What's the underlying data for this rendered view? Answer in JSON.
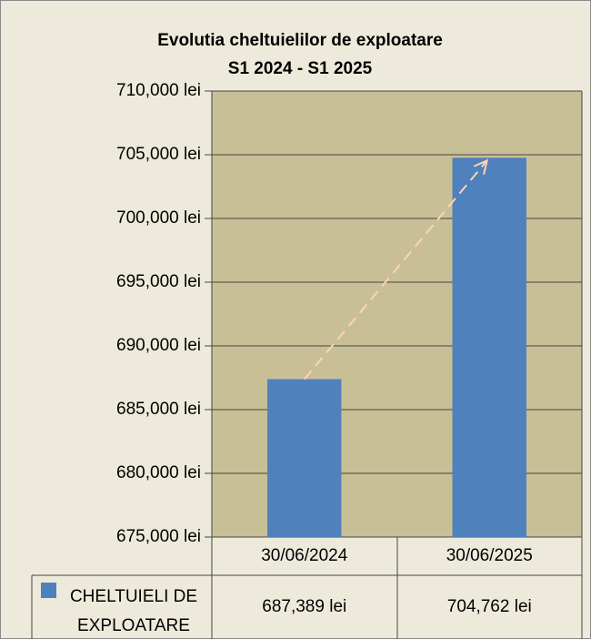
{
  "chart_data": {
    "type": "bar",
    "title": "Evolutia cheltuielilor de exploatare",
    "subtitle": "S1 2024 - S1 2025",
    "categories": [
      "30/06/2024",
      "30/06/2025"
    ],
    "series": [
      {
        "name": "CHELTUIELI DE EXPLOATARE",
        "color": "#4f81bd",
        "values": [
          687389,
          704762
        ],
        "value_labels": [
          "687,389 lei",
          "704,762 lei"
        ]
      }
    ],
    "ylim": [
      675000,
      710000
    ],
    "yticks": [
      {
        "value": 675000,
        "label": "675,000 lei"
      },
      {
        "value": 680000,
        "label": "680,000 lei"
      },
      {
        "value": 685000,
        "label": "685,000 lei"
      },
      {
        "value": 690000,
        "label": "690,000 lei"
      },
      {
        "value": 695000,
        "label": "695,000 lei"
      },
      {
        "value": 700000,
        "label": "700,000 lei"
      },
      {
        "value": 705000,
        "label": "705,000 lei"
      },
      {
        "value": 710000,
        "label": "710,000 lei"
      }
    ],
    "grid": true
  }
}
